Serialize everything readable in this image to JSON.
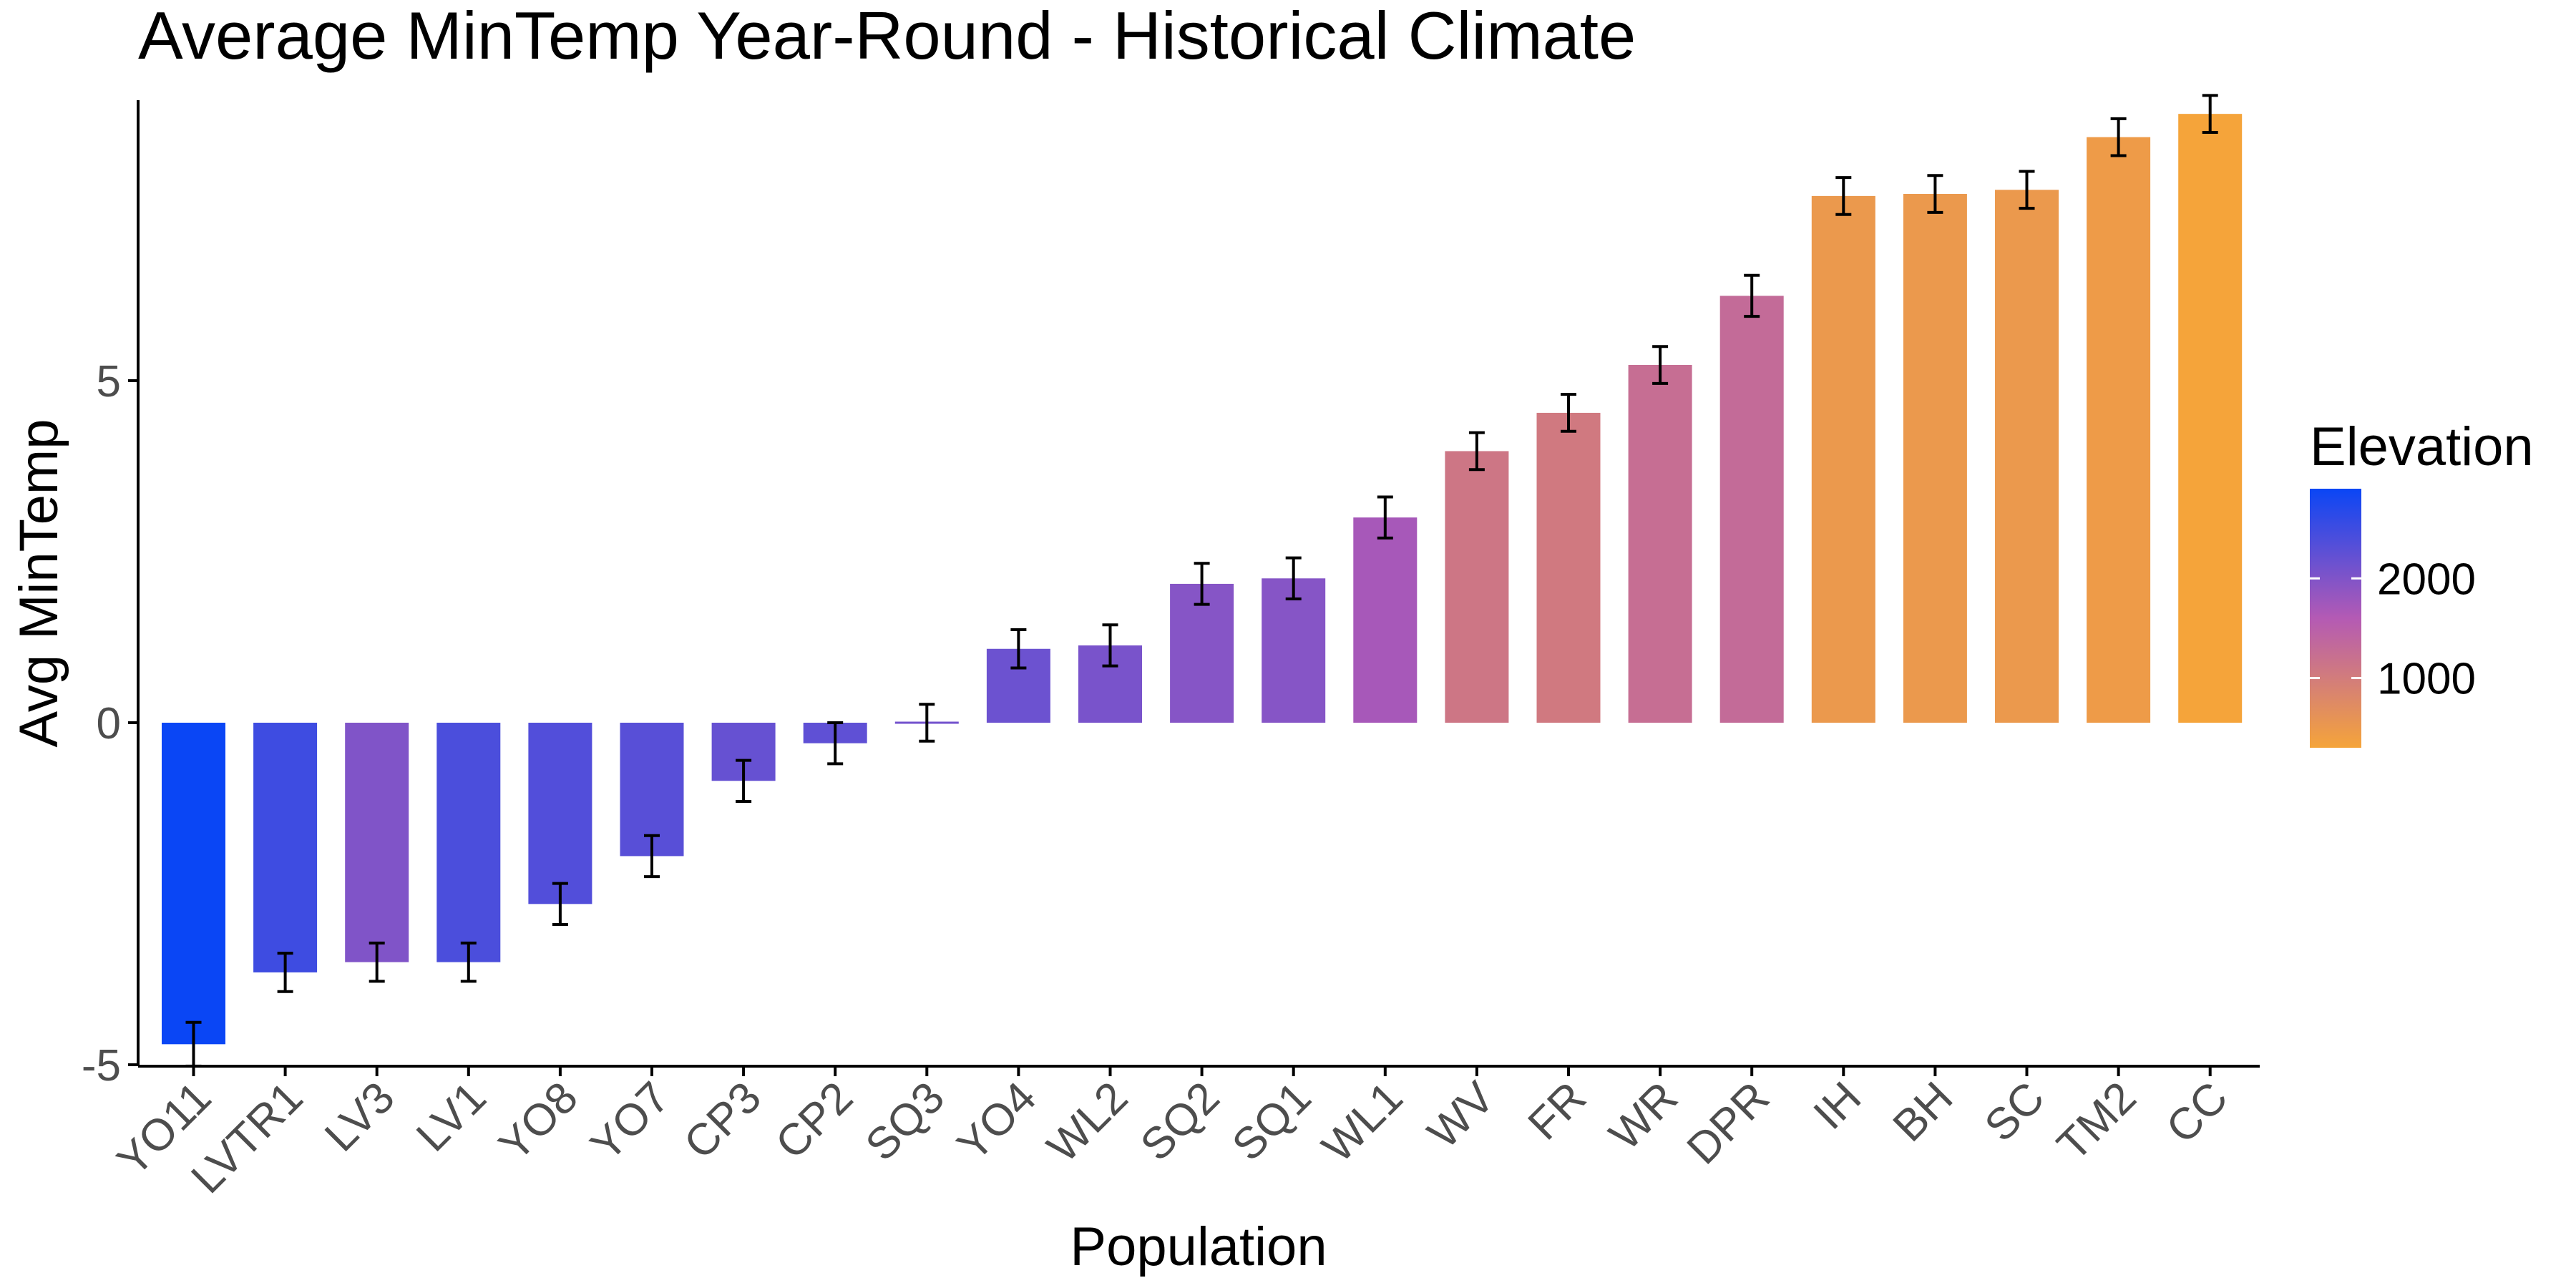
{
  "chart_data": {
    "type": "bar",
    "title": "Average MinTemp Year-Round - Historical Climate",
    "xlabel": "Population",
    "ylabel": "Avg MinTemp",
    "ylim": [
      -5,
      9.1
    ],
    "yticks": [
      -5,
      0,
      5
    ],
    "ytick_labels": [
      "-5",
      "0",
      "5"
    ],
    "grid": false,
    "legend_position": "right",
    "categories": [
      "YO11",
      "LVTR1",
      "LV3",
      "LV1",
      "YO8",
      "YO7",
      "CP3",
      "CP2",
      "SQ3",
      "YO4",
      "WL2",
      "SQ2",
      "SQ1",
      "WL1",
      "WV",
      "FR",
      "WR",
      "DPR",
      "IH",
      "BH",
      "SC",
      "TM2",
      "CC"
    ],
    "series": [
      {
        "values": [
          -4.7,
          -3.65,
          -3.5,
          -3.5,
          -2.65,
          -1.95,
          -0.85,
          -0.3,
          0,
          1.08,
          1.13,
          2.03,
          2.11,
          3.0,
          3.97,
          4.53,
          5.23,
          6.24,
          7.7,
          7.73,
          7.79,
          8.56,
          8.9
        ],
        "error": [
          0.32,
          0.28,
          0.28,
          0.28,
          0.3,
          0.3,
          0.3,
          0.3,
          0.27,
          0.28,
          0.3,
          0.3,
          0.3,
          0.3,
          0.27,
          0.27,
          0.27,
          0.3,
          0.27,
          0.27,
          0.27,
          0.27,
          0.27
        ],
        "elevation": [
          2900,
          2500,
          2000,
          2400,
          2350,
          2300,
          2200,
          2250,
          2100,
          2150,
          2050,
          1950,
          1950,
          1700,
          1100,
          1050,
          1250,
          1300,
          500,
          500,
          500,
          450,
          300
        ]
      }
    ],
    "colorbar": {
      "title": "Elevation",
      "ticks": [
        2000,
        1000
      ],
      "tick_labels": [
        "2000",
        "1000"
      ],
      "range": [
        300,
        2900
      ],
      "low_color": "#F5A43A",
      "mid_color": "#B45AB4",
      "high_color": "#0A46F5"
    },
    "axis_color": "#000000",
    "tick_label_color": "#4D4D4D"
  }
}
